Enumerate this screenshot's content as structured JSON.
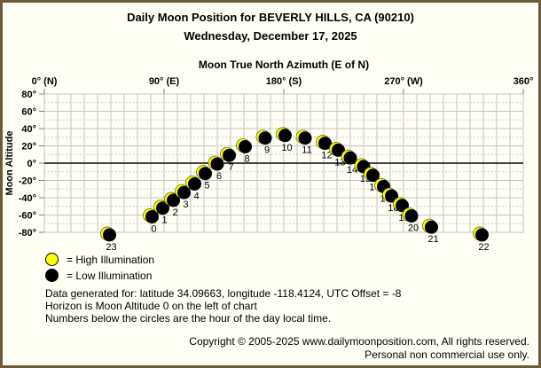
{
  "page": {
    "title": "Daily Moon Position for BEVERLY HILLS, CA (90210)",
    "date": "Wednesday, December 17, 2025"
  },
  "chart_data": {
    "type": "scatter",
    "title": "Moon True North Azimuth (E of N)",
    "xlabel": "Moon True North Azimuth (E of N)",
    "ylabel": "Moon Altitude",
    "xlim": [
      0,
      360
    ],
    "ylim": [
      -80,
      80
    ],
    "x_major_ticks": [
      {
        "value": 0,
        "label": "0° (N)"
      },
      {
        "value": 90,
        "label": "90° (E)"
      },
      {
        "value": 180,
        "label": "180° (S)"
      },
      {
        "value": 270,
        "label": "270° (W)"
      },
      {
        "value": 360,
        "label": "360°"
      }
    ],
    "x_grid_step": 10,
    "y_major_step": 20,
    "y_minor_step": 10,
    "y_tick_suffix": "°",
    "grid": true,
    "horizon_altitude": 0,
    "series": [
      {
        "name": "Moon position by hour of day",
        "illumination": "low",
        "points": [
          {
            "hour": 0,
            "azimuth": 81,
            "altitude": -62
          },
          {
            "hour": 1,
            "azimuth": 89,
            "altitude": -52
          },
          {
            "hour": 2,
            "azimuth": 97,
            "altitude": -43
          },
          {
            "hour": 3,
            "azimuth": 105,
            "altitude": -34
          },
          {
            "hour": 4,
            "azimuth": 113,
            "altitude": -24
          },
          {
            "hour": 5,
            "azimuth": 121,
            "altitude": -12
          },
          {
            "hour": 6,
            "azimuth": 130,
            "altitude": -1
          },
          {
            "hour": 7,
            "azimuth": 139,
            "altitude": 9
          },
          {
            "hour": 8,
            "azimuth": 151,
            "altitude": 19
          },
          {
            "hour": 9,
            "azimuth": 166,
            "altitude": 29
          },
          {
            "hour": 10,
            "azimuth": 181,
            "altitude": 32
          },
          {
            "hour": 11,
            "azimuth": 196,
            "altitude": 29
          },
          {
            "hour": 12,
            "azimuth": 211,
            "altitude": 23
          },
          {
            "hour": 13,
            "azimuth": 221,
            "altitude": 15
          },
          {
            "hour": 14,
            "azimuth": 230,
            "altitude": 6
          },
          {
            "hour": 15,
            "azimuth": 240,
            "altitude": -4
          },
          {
            "hour": 16,
            "azimuth": 247,
            "altitude": -14
          },
          {
            "hour": 17,
            "azimuth": 255,
            "altitude": -27
          },
          {
            "hour": 18,
            "azimuth": 261,
            "altitude": -38
          },
          {
            "hour": 19,
            "azimuth": 269,
            "altitude": -49
          },
          {
            "hour": 20,
            "azimuth": 276,
            "altitude": -61
          },
          {
            "hour": 21,
            "azimuth": 291,
            "altitude": -74
          },
          {
            "hour": 22,
            "azimuth": 329,
            "altitude": -83
          },
          {
            "hour": 23,
            "azimuth": 49,
            "altitude": -83
          }
        ]
      }
    ],
    "colors": {
      "high_illumination": "#FFFF00",
      "low_illumination": "#000000",
      "grid": "#C4C4C4",
      "grid_minor": "#CCCCCC",
      "horizon": "#000000",
      "tick": "#808080"
    }
  },
  "legend": {
    "high_label": "= High Illumination",
    "low_label": "= Low Illumination"
  },
  "notes": {
    "line1": "Data generated for: latitude 34.09663, longitude -118.4124, UTC Offset = -8",
    "line2": "Horizon is Moon Altitude 0 on the left of chart",
    "line3": "Numbers below the circles are the hour of the day local time."
  },
  "footer": {
    "copyright": "Copyright © 2005-2025 www.dailymoonposition.com, All rights reserved.",
    "usage": "Personal non commercial use only."
  }
}
